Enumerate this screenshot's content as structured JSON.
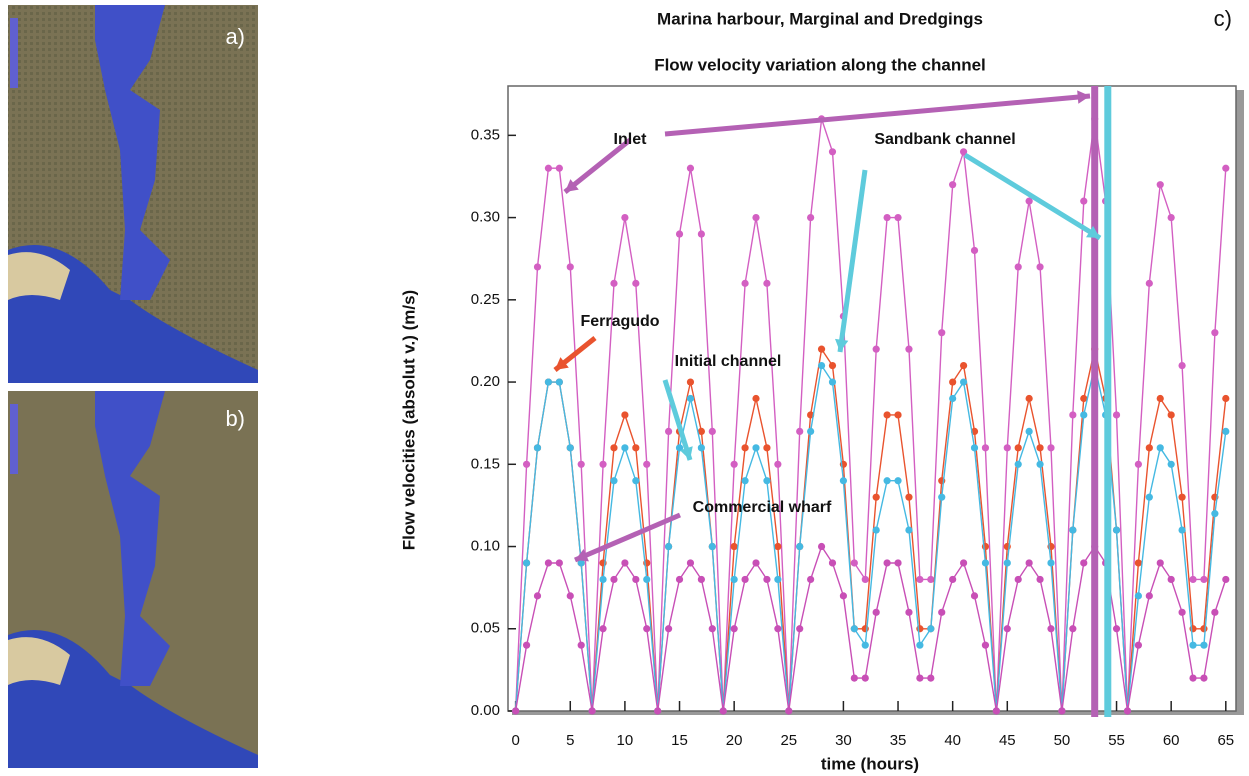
{
  "panels": {
    "a": "a)",
    "b": "b)"
  },
  "chart_data": {
    "type": "line",
    "panel_label": "c)",
    "title": "Marina harbour, Marginal and Dredgings",
    "subtitle": "Flow velocity variation along the channel",
    "xlabel": "time (hours)",
    "ylabel": "Flow velocities (absolut v.) (m/s)",
    "xlim": [
      -0.7,
      66.3
    ],
    "ylim": [
      0,
      0.38
    ],
    "xticks": [
      0,
      5,
      10,
      15,
      20,
      25,
      30,
      35,
      40,
      45,
      50,
      55,
      60,
      65
    ],
    "yticks": [
      {
        "value": 0,
        "label": "0.00"
      },
      0.05,
      {
        "value": 0.1,
        "label": "0.10"
      },
      0.15,
      {
        "value": 0.2,
        "label": "0.20"
      },
      0.25,
      {
        "value": 0.3,
        "label": "0.30"
      },
      0.35
    ],
    "x": [
      0,
      1,
      2,
      3,
      4,
      5,
      6,
      7,
      8,
      9,
      10,
      11,
      12,
      13,
      14,
      15,
      16,
      17,
      18,
      19,
      20,
      21,
      22,
      23,
      24,
      25,
      26,
      27,
      28,
      29,
      30,
      31,
      32,
      33,
      34,
      35,
      36,
      37,
      38,
      39,
      40,
      41,
      42,
      43,
      44,
      45,
      46,
      47,
      48,
      49,
      50,
      51,
      52,
      53,
      54,
      55,
      56,
      57,
      58,
      59,
      60,
      61,
      62,
      63,
      64,
      65
    ],
    "series": [
      {
        "name": "Inlet",
        "color": "#d35fc2",
        "values": [
          0,
          0.15,
          0.27,
          0.33,
          0.33,
          0.27,
          0.15,
          0,
          0.15,
          0.26,
          0.3,
          0.26,
          0.15,
          0,
          0.17,
          0.29,
          0.33,
          0.29,
          0.17,
          0,
          0.15,
          0.26,
          0.3,
          0.26,
          0.15,
          0,
          0.17,
          0.3,
          0.36,
          0.34,
          0.24,
          0.09,
          0.08,
          0.22,
          0.3,
          0.3,
          0.22,
          0.08,
          0.08,
          0.23,
          0.32,
          0.34,
          0.28,
          0.16,
          0,
          0.16,
          0.27,
          0.31,
          0.27,
          0.16,
          0,
          0.18,
          0.31,
          0.36,
          0.31,
          0.18,
          0,
          0.15,
          0.26,
          0.32,
          0.3,
          0.21,
          0.08,
          0.08,
          0.23,
          0.33
        ]
      },
      {
        "name": "Ferragudo",
        "color": "#e9532e",
        "values": [
          0,
          0.09,
          0.16,
          0.2,
          0.2,
          0.16,
          0.09,
          0,
          0.09,
          0.16,
          0.18,
          0.16,
          0.09,
          0,
          0.1,
          0.17,
          0.2,
          0.17,
          0.1,
          0,
          0.1,
          0.16,
          0.19,
          0.16,
          0.1,
          0,
          0.1,
          0.18,
          0.22,
          0.21,
          0.15,
          0.05,
          0.05,
          0.13,
          0.18,
          0.18,
          0.13,
          0.05,
          0.05,
          0.14,
          0.2,
          0.21,
          0.17,
          0.1,
          0,
          0.1,
          0.16,
          0.19,
          0.16,
          0.1,
          0,
          0.11,
          0.19,
          0.22,
          0.19,
          0.11,
          0,
          0.09,
          0.16,
          0.19,
          0.18,
          0.13,
          0.05,
          0.05,
          0.13,
          0.19
        ]
      },
      {
        "name": "Initial channel",
        "color": "#45b9e2",
        "values": [
          0,
          0.09,
          0.16,
          0.2,
          0.2,
          0.16,
          0.09,
          0,
          0.08,
          0.14,
          0.16,
          0.14,
          0.08,
          0,
          0.1,
          0.16,
          0.19,
          0.16,
          0.1,
          0,
          0.08,
          0.14,
          0.16,
          0.14,
          0.08,
          0,
          0.1,
          0.17,
          0.21,
          0.2,
          0.14,
          0.05,
          0.04,
          0.11,
          0.14,
          0.14,
          0.11,
          0.04,
          0.05,
          0.13,
          0.19,
          0.2,
          0.16,
          0.09,
          0,
          0.09,
          0.15,
          0.17,
          0.15,
          0.09,
          0,
          0.11,
          0.18,
          0.21,
          0.18,
          0.11,
          0,
          0.07,
          0.13,
          0.16,
          0.15,
          0.11,
          0.04,
          0.04,
          0.12,
          0.17
        ]
      },
      {
        "name": "Commercial wharf",
        "color": "#c84fb6",
        "values": [
          0,
          0.04,
          0.07,
          0.09,
          0.09,
          0.07,
          0.04,
          0,
          0.05,
          0.08,
          0.09,
          0.08,
          0.05,
          0,
          0.05,
          0.08,
          0.09,
          0.08,
          0.05,
          0,
          0.05,
          0.08,
          0.09,
          0.08,
          0.05,
          0,
          0.05,
          0.08,
          0.1,
          0.09,
          0.07,
          0.02,
          0.02,
          0.06,
          0.09,
          0.09,
          0.06,
          0.02,
          0.02,
          0.06,
          0.08,
          0.09,
          0.07,
          0.04,
          0,
          0.05,
          0.08,
          0.09,
          0.08,
          0.05,
          0,
          0.05,
          0.09,
          0.1,
          0.09,
          0.05,
          0,
          0.04,
          0.07,
          0.09,
          0.08,
          0.06,
          0.02,
          0.02,
          0.06,
          0.08
        ]
      }
    ],
    "markers": [
      {
        "x": 53,
        "color": "#b461b4"
      },
      {
        "x": 54.2,
        "color": "#5ecbdc"
      }
    ],
    "annotations": [
      "Inlet",
      "Sandbank channel",
      "Ferragudo",
      "Initial channel",
      "Commercial wharf"
    ]
  }
}
